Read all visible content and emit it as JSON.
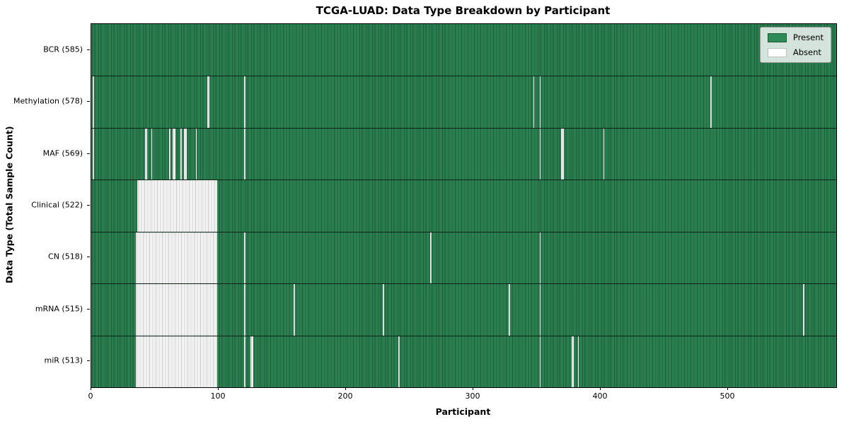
{
  "chart_data": {
    "type": "heatmap",
    "title": "TCGA-LUAD: Data Type Breakdown by Participant",
    "xlabel": "Participant",
    "ylabel": "Data Type (Total Sample Count)",
    "x_range": [
      0,
      585
    ],
    "x_ticks": [
      0,
      100,
      200,
      300,
      400,
      500
    ],
    "grid": "row-separators-on",
    "legend_position": "upper right",
    "legend": [
      {
        "label": "Present",
        "color": "#2e8b57"
      },
      {
        "label": "Absent",
        "color": "#ffffff"
      }
    ],
    "colors": {
      "present_fill": "#2e8b57",
      "present_edge": "#1c5434",
      "absent_fill": "#ffffff",
      "absent_edge": "#c6c6c6",
      "background": "#ffffff"
    },
    "rows": [
      {
        "label": "BCR (585)",
        "present_count": 585,
        "absent": []
      },
      {
        "label": "Methylation (578)",
        "present_count": 578,
        "absent": [
          [
            1,
            1
          ],
          [
            91,
            92
          ],
          [
            120,
            120
          ],
          [
            347,
            347
          ],
          [
            352,
            352
          ],
          [
            486,
            486
          ]
        ]
      },
      {
        "label": "MAF (569)",
        "present_count": 569,
        "absent": [
          [
            1,
            1
          ],
          [
            42,
            43
          ],
          [
            47,
            47
          ],
          [
            61,
            61
          ],
          [
            64,
            65
          ],
          [
            70,
            70
          ],
          [
            73,
            74
          ],
          [
            82,
            82
          ],
          [
            120,
            120
          ],
          [
            352,
            352
          ],
          [
            369,
            370
          ],
          [
            402,
            402
          ]
        ]
      },
      {
        "label": "Clinical (522)",
        "present_count": 522,
        "absent": [
          [
            36,
            98
          ]
        ]
      },
      {
        "label": "CN (518)",
        "present_count": 518,
        "absent": [
          [
            35,
            98
          ],
          [
            120,
            120
          ],
          [
            266,
            266
          ],
          [
            352,
            352
          ]
        ]
      },
      {
        "label": "mRNA (515)",
        "present_count": 515,
        "absent": [
          [
            35,
            98
          ],
          [
            120,
            120
          ],
          [
            159,
            159
          ],
          [
            229,
            229
          ],
          [
            328,
            328
          ],
          [
            352,
            352
          ],
          [
            559,
            559
          ]
        ]
      },
      {
        "label": "miR (513)",
        "present_count": 513,
        "absent": [
          [
            35,
            98
          ],
          [
            120,
            120
          ],
          [
            125,
            126
          ],
          [
            241,
            241
          ],
          [
            352,
            352
          ],
          [
            377,
            378
          ],
          [
            382,
            382
          ]
        ]
      }
    ]
  }
}
